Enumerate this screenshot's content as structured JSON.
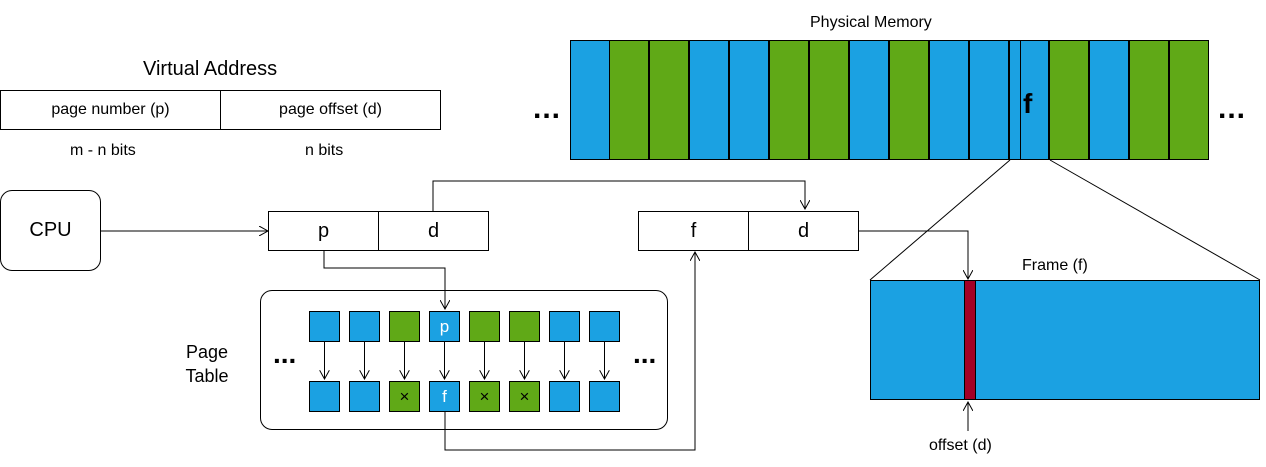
{
  "virtual_address": {
    "title": "Virtual Address",
    "page_number_label": "page number (p)",
    "page_offset_label": "page offset (d)",
    "page_number_bits": "m - n bits",
    "page_offset_bits": "n bits"
  },
  "physical_memory": {
    "title": "Physical Memory",
    "left_ellipsis": "...",
    "right_ellipsis": "...",
    "frame_label": "f",
    "frames": [
      "blue",
      "green",
      "green",
      "blue",
      "blue",
      "green",
      "green",
      "blue",
      "green",
      "blue",
      "blue",
      "blue",
      "green",
      "blue",
      "green",
      "green"
    ]
  },
  "cpu": {
    "label": "CPU"
  },
  "logical_address": {
    "p": "p",
    "d": "d"
  },
  "physical_address": {
    "f": "f",
    "d": "d"
  },
  "page_table": {
    "label_line1": "Page",
    "label_line2": "Table",
    "left_ellipsis": "...",
    "right_ellipsis": "...",
    "top_row": [
      {
        "color": "blue",
        "text": ""
      },
      {
        "color": "blue",
        "text": ""
      },
      {
        "color": "green",
        "text": ""
      },
      {
        "color": "blue",
        "text": "p"
      },
      {
        "color": "green",
        "text": ""
      },
      {
        "color": "green",
        "text": ""
      },
      {
        "color": "blue",
        "text": ""
      },
      {
        "color": "blue",
        "text": ""
      }
    ],
    "bottom_row": [
      {
        "color": "blue",
        "text": ""
      },
      {
        "color": "blue",
        "text": ""
      },
      {
        "color": "green",
        "text": "×"
      },
      {
        "color": "blue",
        "text": "f"
      },
      {
        "color": "green",
        "text": "×"
      },
      {
        "color": "green",
        "text": "×"
      },
      {
        "color": "blue",
        "text": ""
      },
      {
        "color": "blue",
        "text": ""
      }
    ]
  },
  "frame_detail": {
    "title": "Frame (f)",
    "offset_label": "offset (d)"
  },
  "colors": {
    "blue": "#1ba1e2",
    "green": "#60a917",
    "offset_marker": "#a20025"
  }
}
